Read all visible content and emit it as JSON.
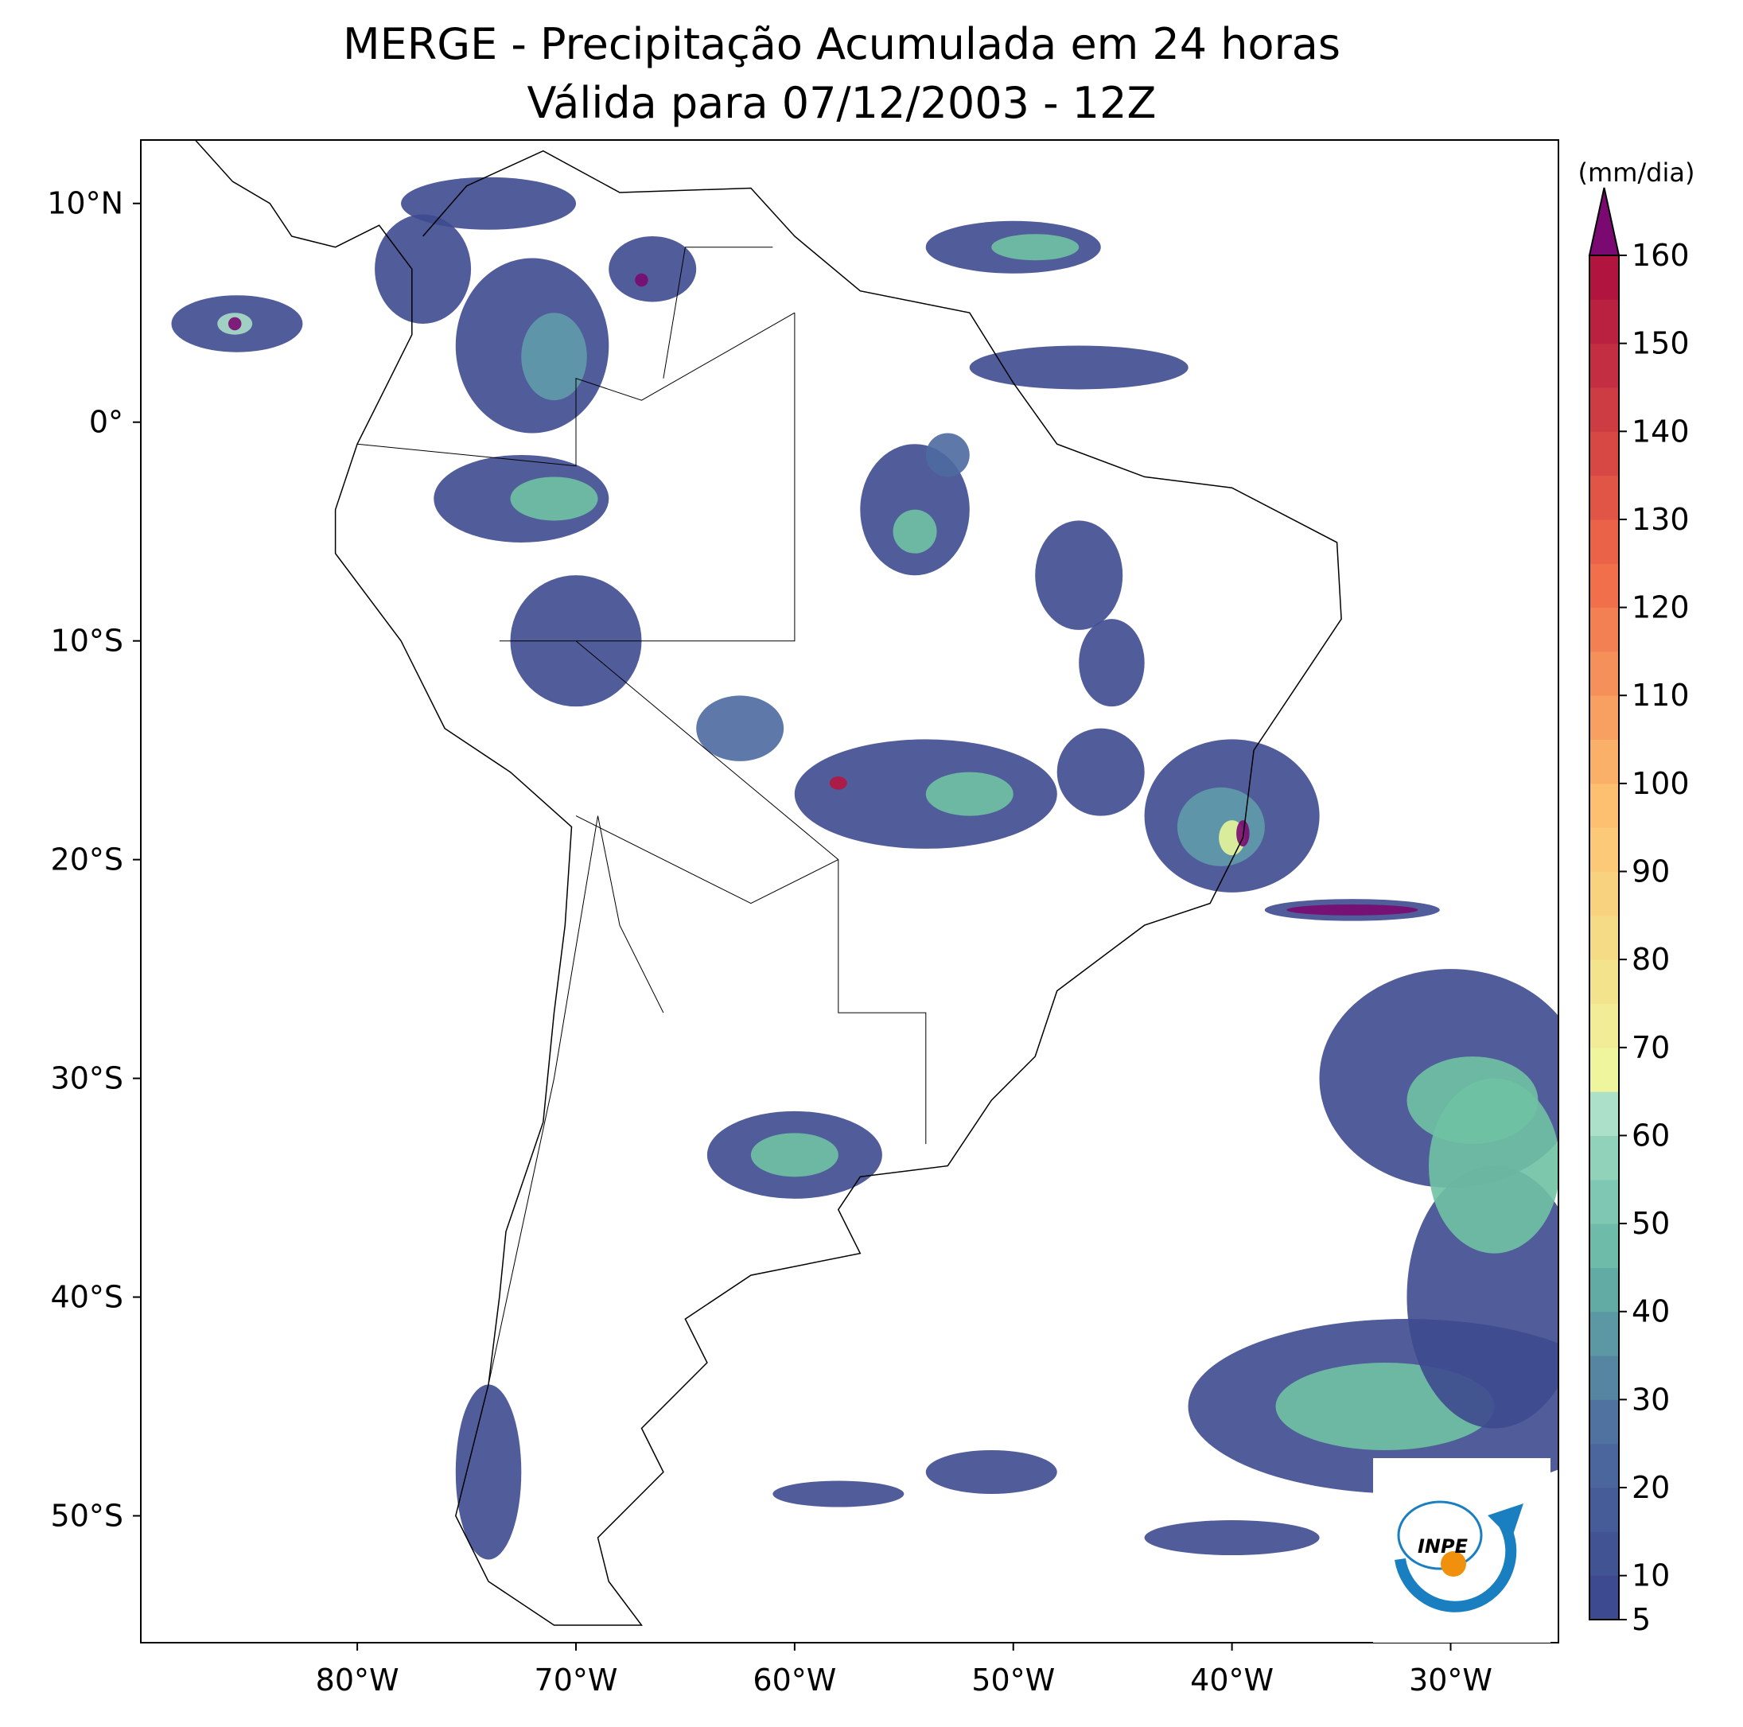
{
  "title": [
    "MERGE - Precipitação Acumulada em 24 horas",
    "Válida para 07/12/2003 - 12Z"
  ],
  "map": {
    "xticks": [
      {
        "value": -80,
        "label": "80°W"
      },
      {
        "value": -70,
        "label": "70°W"
      },
      {
        "value": -60,
        "label": "60°W"
      },
      {
        "value": -50,
        "label": "50°W"
      },
      {
        "value": -40,
        "label": "40°W"
      },
      {
        "value": -30,
        "label": "30°W"
      }
    ],
    "yticks": [
      {
        "value": 10,
        "label": "10°N"
      },
      {
        "value": 0,
        "label": "0°"
      },
      {
        "value": -10,
        "label": "10°S"
      },
      {
        "value": -20,
        "label": "20°S"
      },
      {
        "value": -30,
        "label": "30°S"
      },
      {
        "value": -40,
        "label": "40°S"
      },
      {
        "value": -50,
        "label": "50°S"
      }
    ]
  },
  "colorbar": {
    "label": "(mm/dia)",
    "lim": [
      5,
      160
    ],
    "ticks": [
      5,
      10,
      20,
      30,
      40,
      50,
      60,
      70,
      80,
      90,
      100,
      110,
      120,
      130,
      140,
      150,
      160
    ]
  },
  "logo": "INPE"
}
